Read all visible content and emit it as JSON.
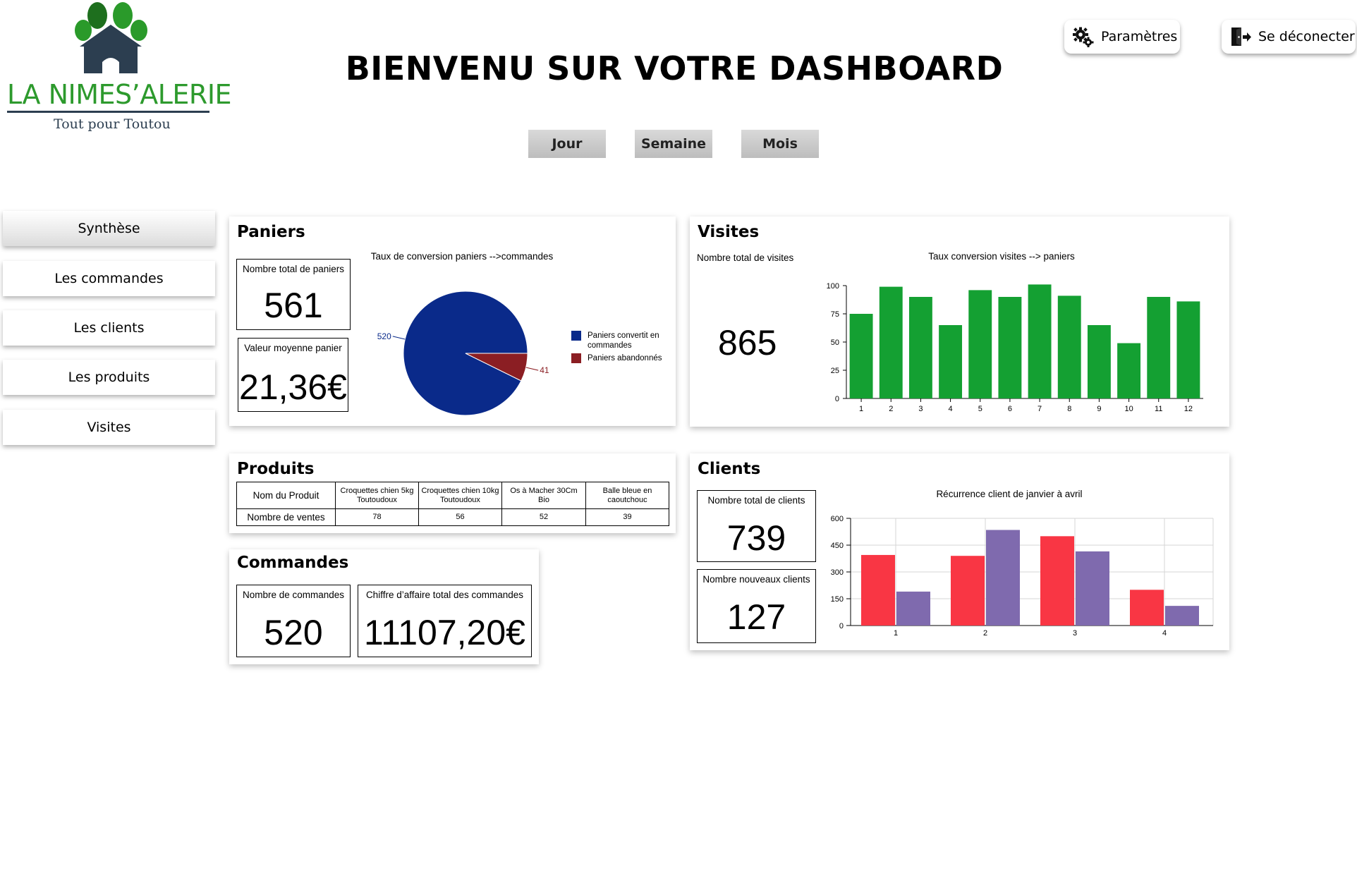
{
  "brand": {
    "name": "LA NIMES’ALERIE",
    "tagline": "Tout pour Toutou"
  },
  "page_title": "BIENVENU SUR VOTRE DASHBOARD",
  "header": {
    "settings_label": "Paramètres",
    "logout_label": "Se déconecter"
  },
  "periods": [
    "Jour",
    "Semaine",
    "Mois"
  ],
  "sidebar": {
    "items": [
      "Synthèse",
      "Les commandes",
      "Les clients",
      "Les produits",
      "Visites"
    ],
    "active": "Synthèse"
  },
  "paniers": {
    "title": "Paniers",
    "total_label": "Nombre total de paniers",
    "total_value": "561",
    "avg_label": "Valeur moyenne panier",
    "avg_value": "21,36€"
  },
  "visites": {
    "title": "Visites",
    "total_label": "Nombre total de visites",
    "total_value": "865"
  },
  "produits": {
    "title": "Produits",
    "header_label": "Nom du Produit",
    "row_label": "Nombre de ventes",
    "products": [
      {
        "name": "Croquettes  chien 5kg Toutoudoux",
        "sales": "78"
      },
      {
        "name": "Croquettes  chien 10kg Toutoudoux",
        "sales": "56"
      },
      {
        "name": "Os à Macher 30Cm Bio",
        "sales": "52"
      },
      {
        "name": "Balle bleue en caoutchouc",
        "sales": "39"
      }
    ]
  },
  "commandes": {
    "title": "Commandes",
    "count_label": "Nombre de commandes",
    "count_value": "520",
    "revenue_label": "Chiffre d’affaire total des commandes",
    "revenue_value": "11107,20€"
  },
  "clients": {
    "title": "Clients",
    "total_label": "Nombre total de clients",
    "total_value": "739",
    "new_label": "Nombre nouveaux clients",
    "new_value": "127"
  },
  "chart_data": [
    {
      "type": "pie",
      "title": "Taux de conversion paniers -->commandes",
      "slices": [
        {
          "label": "Paniers convertit en commandes",
          "value": 520,
          "color": "#0a2a8a"
        },
        {
          "label": "Paniers abandonnés",
          "value": 41,
          "color": "#8b1e23"
        }
      ],
      "legend": "right"
    },
    {
      "type": "bar",
      "title": "Taux conversion visites --> paniers",
      "categories": [
        "1",
        "2",
        "3",
        "4",
        "5",
        "6",
        "7",
        "8",
        "9",
        "10",
        "11",
        "12"
      ],
      "values": [
        75,
        99,
        90,
        65,
        96,
        90,
        101,
        91,
        65,
        49,
        90,
        86
      ],
      "ylim": [
        0,
        100
      ],
      "yticks": [
        0,
        25,
        50,
        75,
        100
      ],
      "color": "#14a032",
      "grid": false
    },
    {
      "type": "bar",
      "title": "Récurrence client de janvier à avril",
      "categories": [
        "1",
        "2",
        "3",
        "4"
      ],
      "series": [
        {
          "values": [
            395,
            390,
            500,
            200
          ],
          "color": "#f93644"
        },
        {
          "values": [
            190,
            535,
            415,
            110
          ],
          "color": "#7f6aae"
        }
      ],
      "ylim": [
        0,
        600
      ],
      "yticks": [
        0,
        150,
        300,
        450,
        600
      ],
      "grid": true
    }
  ]
}
